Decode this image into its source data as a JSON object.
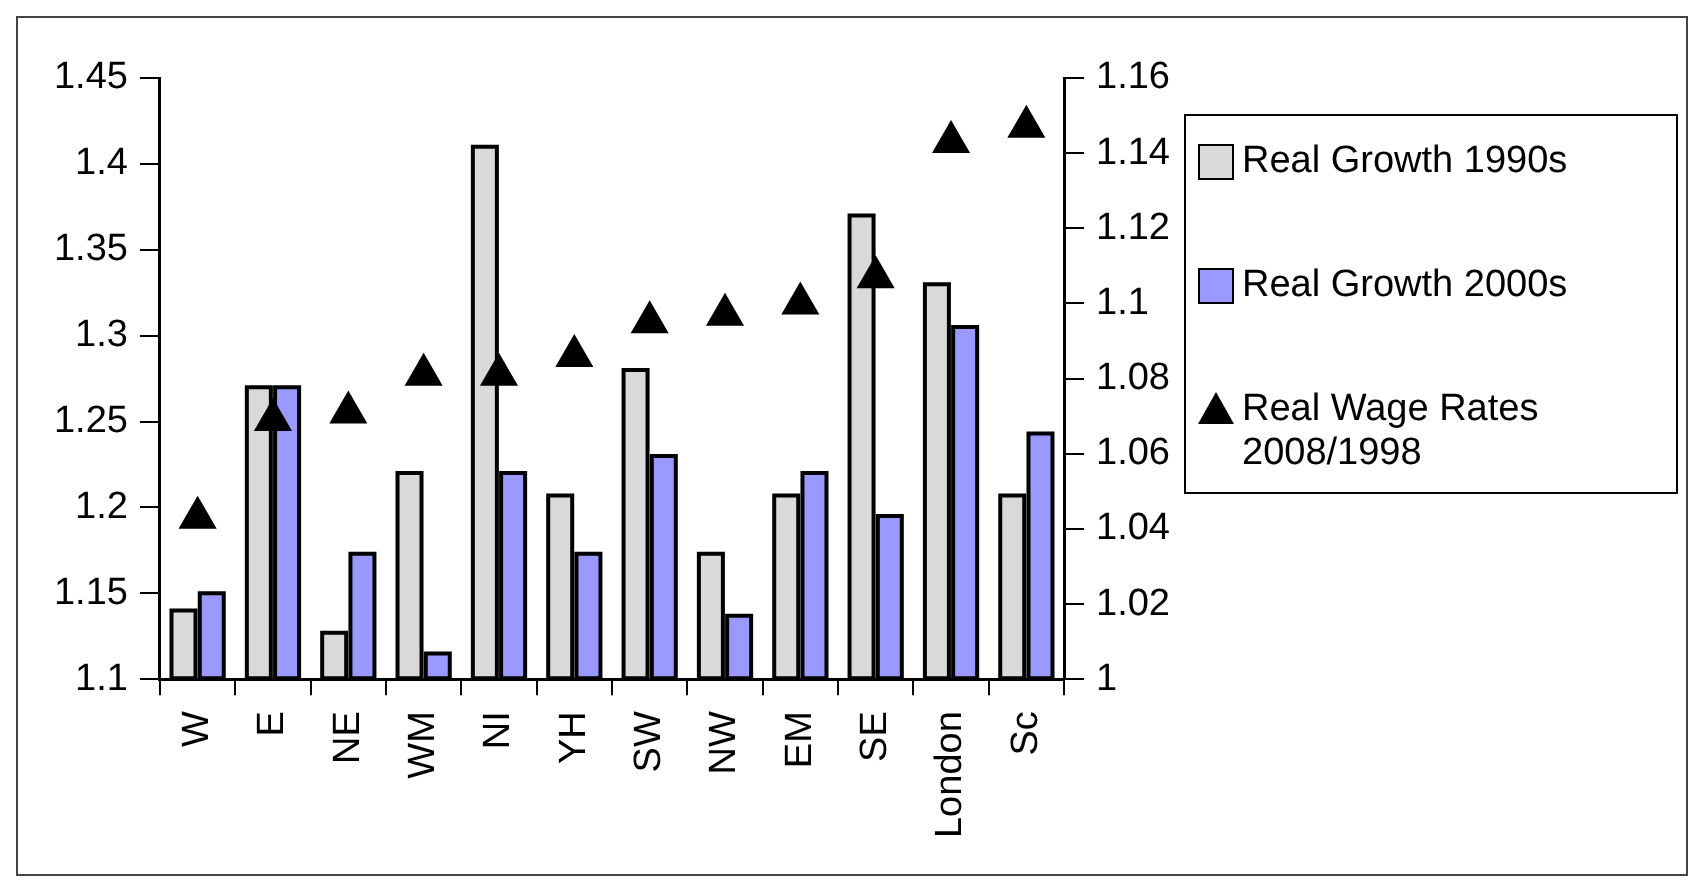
{
  "chart_data": {
    "type": "bar",
    "categories": [
      "W",
      "E",
      "NE",
      "WM",
      "NI",
      "YH",
      "SW",
      "NW",
      "EM",
      "SE",
      "London",
      "Sc"
    ],
    "series": [
      {
        "name": "Real Growth 1990s",
        "color": "#d9d9d9",
        "values": [
          1.14,
          1.27,
          1.127,
          1.22,
          1.41,
          1.207,
          1.28,
          1.173,
          1.207,
          1.37,
          1.33,
          1.207
        ]
      },
      {
        "name": "Real Growth 2000s",
        "color": "#9999ff",
        "values": [
          1.15,
          1.27,
          1.173,
          1.115,
          1.22,
          1.173,
          1.23,
          1.137,
          1.22,
          1.195,
          1.305,
          1.243
        ]
      },
      {
        "name": "Real Wage Rates 2008/1998",
        "type": "scatter",
        "axis": "y2",
        "color": "#000000",
        "marker": "triangle",
        "values": [
          1.043,
          1.069,
          1.071,
          1.081,
          1.081,
          1.086,
          1.095,
          1.097,
          1.1,
          1.107,
          1.143,
          1.147
        ]
      }
    ],
    "ylim": [
      1.1,
      1.45
    ],
    "yticks": [
      1.1,
      1.15,
      1.2,
      1.25,
      1.3,
      1.35,
      1.4,
      1.45
    ],
    "y2lim": [
      1,
      1.16
    ],
    "y2ticks": [
      1,
      1.02,
      1.04,
      1.06,
      1.08,
      1.1,
      1.12,
      1.14,
      1.16
    ],
    "grid": false,
    "legend": "right"
  }
}
